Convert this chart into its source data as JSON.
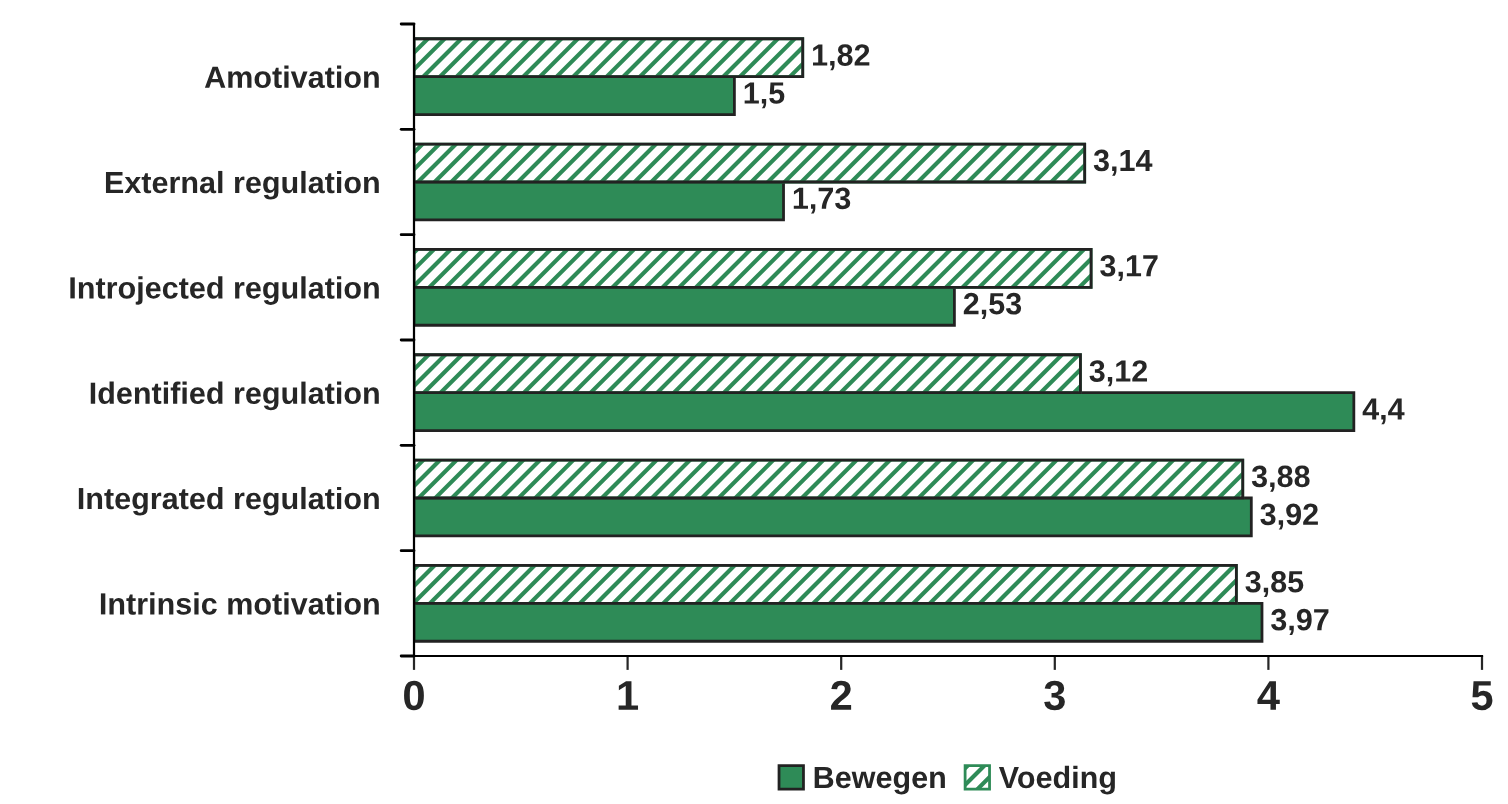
{
  "chart_data": {
    "type": "bar",
    "orientation": "horizontal",
    "categories": [
      "Amotivation",
      "External regulation",
      "Introjected regulation",
      "Identified regulation",
      "Integrated regulation",
      "Intrinsic motivation"
    ],
    "series": [
      {
        "name": "Bewegen",
        "color": "#2e8b57",
        "values": [
          1.5,
          1.73,
          2.53,
          4.4,
          3.92,
          3.97
        ],
        "value_labels": [
          "1,5",
          "1,73",
          "2,53",
          "4,4",
          "3,92",
          "3,97"
        ]
      },
      {
        "name": "Voeding",
        "color": "#2e8b57",
        "values": [
          1.82,
          3.14,
          3.17,
          3.12,
          3.88,
          3.85
        ],
        "value_labels": [
          "1,82",
          "3,14",
          "3,17",
          "3,12",
          "3,88",
          "3,85"
        ]
      }
    ],
    "xlim": [
      0,
      5
    ],
    "xticks": [
      0,
      1,
      2,
      3,
      4,
      5
    ],
    "grid": false,
    "legend": "bottom"
  }
}
